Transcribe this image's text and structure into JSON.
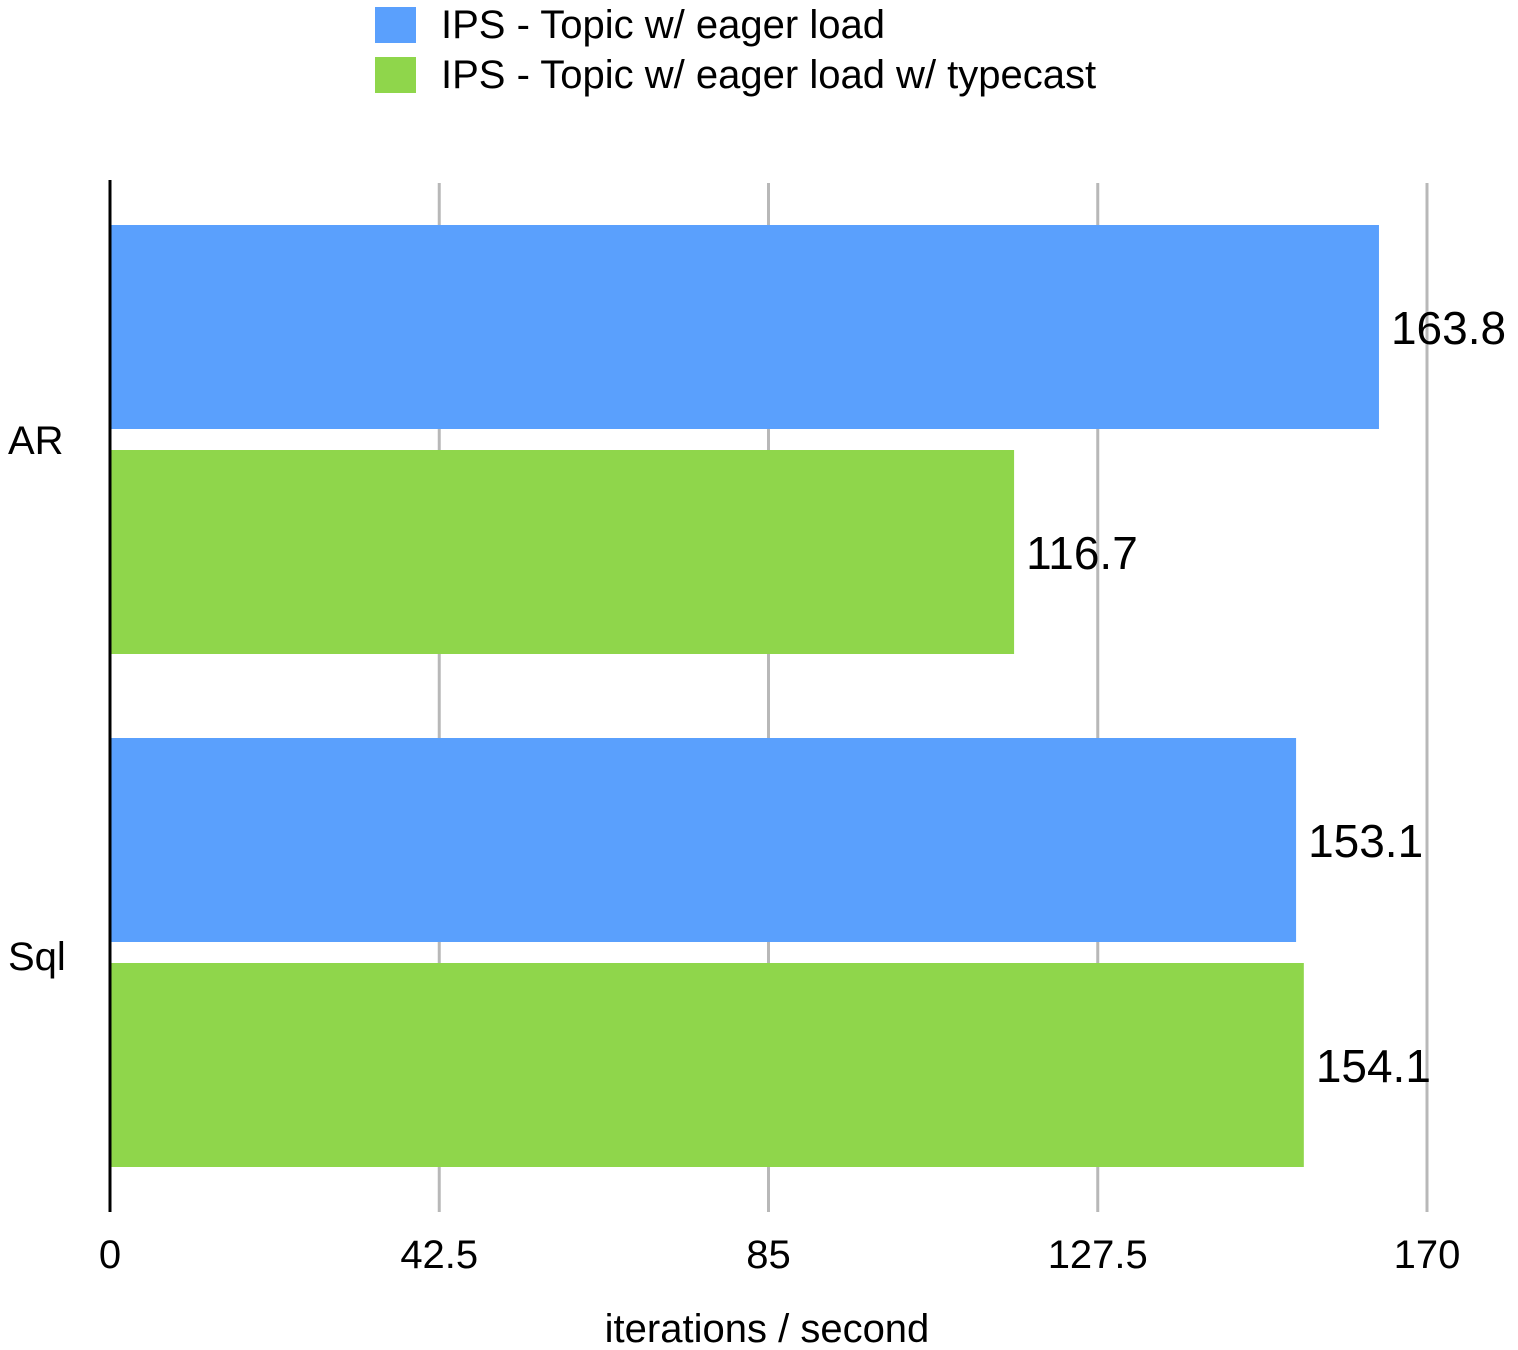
{
  "chart_data": {
    "type": "bar",
    "orientation": "horizontal",
    "categories": [
      "AR",
      "Sql"
    ],
    "series": [
      {
        "name": "IPS - Topic w/ eager load",
        "color": "#5aa0fd",
        "values": [
          163.8,
          153.1
        ]
      },
      {
        "name": "IPS - Topic w/ eager load w/ typecast",
        "color": "#8fd64b",
        "values": [
          116.7,
          154.1
        ]
      }
    ],
    "xlabel": "iterations / second",
    "ylabel": "",
    "xlim": [
      0,
      170
    ],
    "xticks": [
      "0",
      "42.5",
      "85",
      "127.5",
      "170"
    ],
    "data_labels": [
      [
        "163.8",
        "153.1"
      ],
      [
        "116.7",
        "154.1"
      ]
    ],
    "grid": true,
    "legend_position": "top"
  }
}
